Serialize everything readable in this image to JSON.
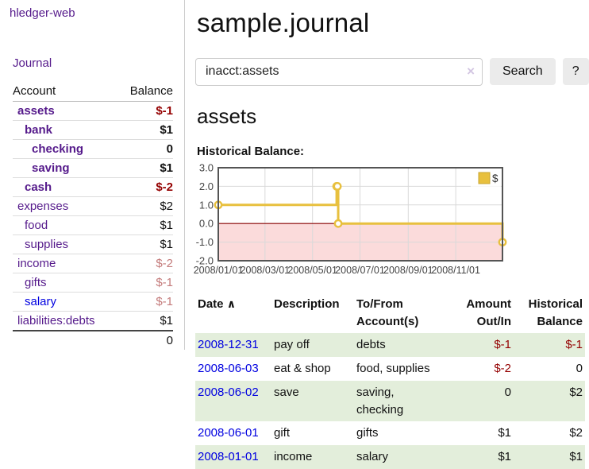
{
  "sidebar": {
    "brand": "hledger-web",
    "nav": {
      "journal": "Journal"
    },
    "table": {
      "account_header": "Account",
      "balance_header": "Balance"
    },
    "accounts": [
      {
        "name": "assets",
        "balance": "$-1",
        "depth": 1,
        "bold": true,
        "balance_class": "neg",
        "link_class": ""
      },
      {
        "name": "bank",
        "balance": "$1",
        "depth": 2,
        "bold": true,
        "balance_class": "",
        "link_class": ""
      },
      {
        "name": "checking",
        "balance": "0",
        "depth": 3,
        "bold": true,
        "balance_class": "",
        "link_class": ""
      },
      {
        "name": "saving",
        "balance": "$1",
        "depth": 3,
        "bold": true,
        "balance_class": "",
        "link_class": ""
      },
      {
        "name": "cash",
        "balance": "$-2",
        "depth": 2,
        "bold": true,
        "balance_class": "neg",
        "link_class": ""
      },
      {
        "name": "expenses",
        "balance": "$2",
        "depth": 1,
        "bold": false,
        "balance_class": "",
        "link_class": ""
      },
      {
        "name": "food",
        "balance": "$1",
        "depth": 2,
        "bold": false,
        "balance_class": "",
        "link_class": ""
      },
      {
        "name": "supplies",
        "balance": "$1",
        "depth": 2,
        "bold": false,
        "balance_class": "",
        "link_class": ""
      },
      {
        "name": "income",
        "balance": "$-2",
        "depth": 1,
        "bold": false,
        "balance_class": "negfade",
        "link_class": ""
      },
      {
        "name": "gifts",
        "balance": "$-1",
        "depth": 2,
        "bold": false,
        "balance_class": "negfade",
        "link_class": ""
      },
      {
        "name": "salary",
        "balance": "$-1",
        "depth": 2,
        "bold": false,
        "balance_class": "negfade",
        "link_class": "blue"
      },
      {
        "name": "liabilities:debts",
        "balance": "$1",
        "depth": 1,
        "bold": false,
        "balance_class": "",
        "link_class": ""
      }
    ],
    "total": "0"
  },
  "main": {
    "title": "sample.journal",
    "search": {
      "value": "inacct:assets",
      "clear_icon": "×",
      "search_button": "Search",
      "help_button": "?"
    },
    "account_heading": "assets",
    "chart_label": "Historical Balance:"
  },
  "chart_data": {
    "type": "line",
    "title": "Historical Balance of assets",
    "step": true,
    "x": [
      "2008-01-01",
      "2008-06-01",
      "2008-06-02",
      "2008-06-03",
      "2008-12-31"
    ],
    "y": [
      1,
      2,
      2,
      0,
      -1
    ],
    "xlim": [
      "2008-01-01",
      "2008-12-31"
    ],
    "ylim": [
      -2,
      3
    ],
    "yticks": [
      -2,
      -1,
      0,
      1,
      2,
      3
    ],
    "xticks": [
      {
        "date": "2008-01-01",
        "label": "2008/01/01"
      },
      {
        "date": "2008-03-01",
        "label": "2008/03/01"
      },
      {
        "date": "2008-05-01",
        "label": "2008/05/01"
      },
      {
        "date": "2008-07-01",
        "label": "2008/07/01"
      },
      {
        "date": "2008-09-01",
        "label": "2008/09/01"
      },
      {
        "date": "2008-11-01",
        "label": "2008/11/01"
      }
    ],
    "legend": {
      "label": "$",
      "position": "top-right"
    },
    "grid": true,
    "colors": {
      "series": "#e8c03e",
      "marker_fill": "#ffffff",
      "negative_fill": "#fbdbdb",
      "zero_line": "#8b0000",
      "grid": "#d9d9d9",
      "frame": "#545454",
      "tick_text": "#444444",
      "legend_border": "#c9a42f"
    }
  },
  "register": {
    "headers": {
      "date": "Date",
      "description": "Description",
      "accounts": "To/From Account(s)",
      "amount": "Amount Out/In",
      "balance": "Historical Balance"
    },
    "sort_icon": "∧",
    "rows": [
      {
        "date": "2008-12-31",
        "description": "pay off",
        "accounts": "debts",
        "amount": "$-1",
        "balance": "$-1",
        "amount_class": "neg",
        "balance_class": "neg"
      },
      {
        "date": "2008-06-03",
        "description": "eat & shop",
        "accounts": "food, supplies",
        "amount": "$-2",
        "balance": "0",
        "amount_class": "neg",
        "balance_class": ""
      },
      {
        "date": "2008-06-02",
        "description": "save",
        "accounts": "saving, checking",
        "amount": "0",
        "balance": "$2",
        "amount_class": "",
        "balance_class": ""
      },
      {
        "date": "2008-06-01",
        "description": "gift",
        "accounts": "gifts",
        "amount": "$1",
        "balance": "$2",
        "amount_class": "",
        "balance_class": ""
      },
      {
        "date": "2008-01-01",
        "description": "income",
        "accounts": "salary",
        "amount": "$1",
        "balance": "$1",
        "amount_class": "",
        "balance_class": ""
      }
    ]
  },
  "colors": {
    "accent_purple": "#551a8b",
    "link_blue": "#0000e0",
    "negative": "#940000",
    "negative_faded": "#c47b7b",
    "row_green": "#e3eedb"
  }
}
